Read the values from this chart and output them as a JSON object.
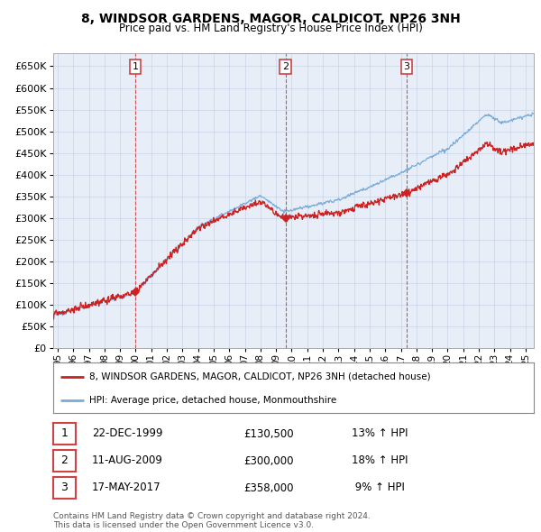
{
  "title": "8, WINDSOR GARDENS, MAGOR, CALDICOT, NP26 3NH",
  "subtitle": "Price paid vs. HM Land Registry's House Price Index (HPI)",
  "ylim": [
    0,
    680000
  ],
  "yticks": [
    0,
    50000,
    100000,
    150000,
    200000,
    250000,
    300000,
    350000,
    400000,
    450000,
    500000,
    550000,
    600000,
    650000
  ],
  "xlim_start": 1994.7,
  "xlim_end": 2025.5,
  "sale_dates": [
    1999.97,
    2009.61,
    2017.37
  ],
  "sale_prices": [
    130500,
    300000,
    358000
  ],
  "sale_labels": [
    "1",
    "2",
    "3"
  ],
  "hpi_line_color": "#7aacda",
  "price_line_color": "#cc2222",
  "vline_color": "#cc4444",
  "grid_color": "#c8d4e8",
  "bg_color": "#ffffff",
  "plot_bg_color": "#e8eef8",
  "legend_entries": [
    "8, WINDSOR GARDENS, MAGOR, CALDICOT, NP26 3NH (detached house)",
    "HPI: Average price, detached house, Monmouthshire"
  ],
  "table_data": [
    [
      "1",
      "22-DEC-1999",
      "£130,500",
      "13% ↑ HPI"
    ],
    [
      "2",
      "11-AUG-2009",
      "£300,000",
      "18% ↑ HPI"
    ],
    [
      "3",
      "17-MAY-2017",
      "£358,000",
      " 9% ↑ HPI"
    ]
  ],
  "footer": "Contains HM Land Registry data © Crown copyright and database right 2024.\nThis data is licensed under the Open Government Licence v3.0.",
  "xtick_labels": [
    "95",
    "96",
    "97",
    "98",
    "99",
    "00",
    "01",
    "02",
    "03",
    "04",
    "05",
    "06",
    "07",
    "08",
    "09",
    "10",
    "11",
    "12",
    "13",
    "14",
    "15",
    "16",
    "17",
    "18",
    "19",
    "20",
    "21",
    "22",
    "23",
    "24",
    "25"
  ],
  "xtick_years": [
    1995,
    1996,
    1997,
    1998,
    1999,
    2000,
    2001,
    2002,
    2003,
    2004,
    2005,
    2006,
    2007,
    2008,
    2009,
    2010,
    2011,
    2012,
    2013,
    2014,
    2015,
    2016,
    2017,
    2018,
    2019,
    2020,
    2021,
    2022,
    2023,
    2024,
    2025
  ]
}
